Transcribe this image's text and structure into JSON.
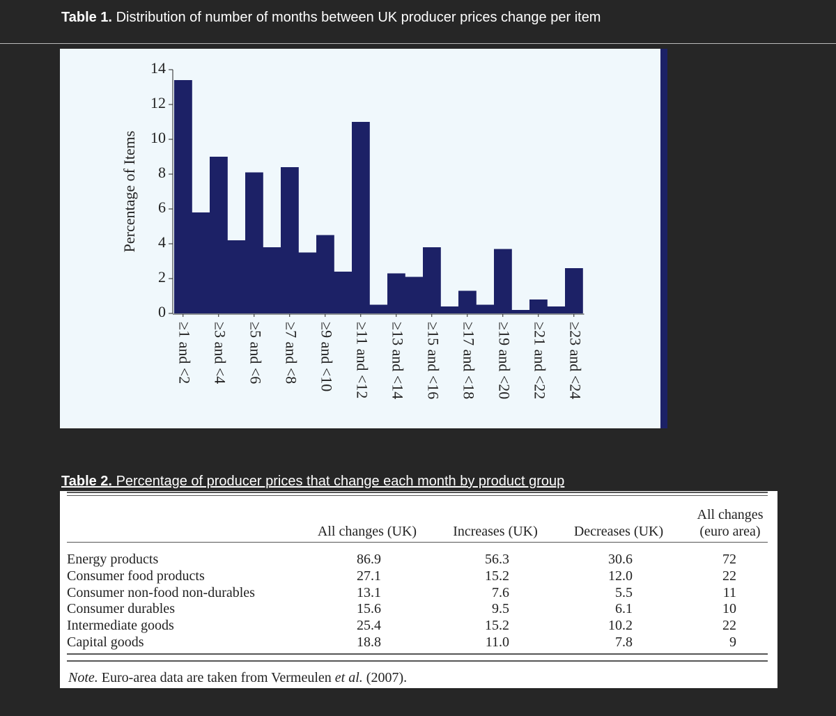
{
  "table1": {
    "label": "Table 1.",
    "title": "Distribution of number of months between UK producer prices change per item"
  },
  "chart_data": {
    "type": "bar",
    "ylabel": "Percentage of Items",
    "categories": [
      "≥1 and <2",
      null,
      "≥3 and <4",
      null,
      "≥5 and <6",
      null,
      "≥7 and <8",
      null,
      "≥9 and <10",
      null,
      "≥11 and <12",
      null,
      "≥13 and <14",
      null,
      "≥15 and <16",
      null,
      "≥17 and <18",
      null,
      "≥19 and <20",
      null,
      "≥21 and <22",
      null,
      "≥23 and <24"
    ],
    "values": [
      13.4,
      5.8,
      9.0,
      4.2,
      8.1,
      3.8,
      8.4,
      3.5,
      4.5,
      2.4,
      11.0,
      0.5,
      2.3,
      2.1,
      3.8,
      0.4,
      1.3,
      0.5,
      3.7,
      0.2,
      0.8,
      0.4,
      2.6
    ],
    "color": "#1c2166",
    "ylim": [
      0,
      14
    ],
    "yticks": [
      0,
      2,
      4,
      6,
      8,
      10,
      12,
      14
    ],
    "grid": false
  },
  "table2": {
    "label": "Table 2.",
    "title": "Percentage of producer prices that change each month by product group",
    "columns": [
      "All changes (UK)",
      "Increases (UK)",
      "Decreases (UK)",
      "All changes (euro area)"
    ],
    "rows": [
      [
        "Energy products",
        "86.9",
        "56.3",
        "30.6",
        "72"
      ],
      [
        "Consumer food products",
        "27.1",
        "15.2",
        "12.0",
        "22"
      ],
      [
        "Consumer non-food non-durables",
        "13.1",
        "7.6",
        "5.5",
        "11"
      ],
      [
        "Consumer durables",
        "15.6",
        "9.5",
        "6.1",
        "10"
      ],
      [
        "Intermediate goods",
        "25.4",
        "15.2",
        "10.2",
        "22"
      ],
      [
        "Capital goods",
        "18.8",
        "11.0",
        "7.8",
        "9"
      ]
    ],
    "note": {
      "label": "Note.",
      "text": "Euro-area data are taken from Vermeulen",
      "emphasis": "et al.",
      "tail": "(2007)."
    }
  }
}
